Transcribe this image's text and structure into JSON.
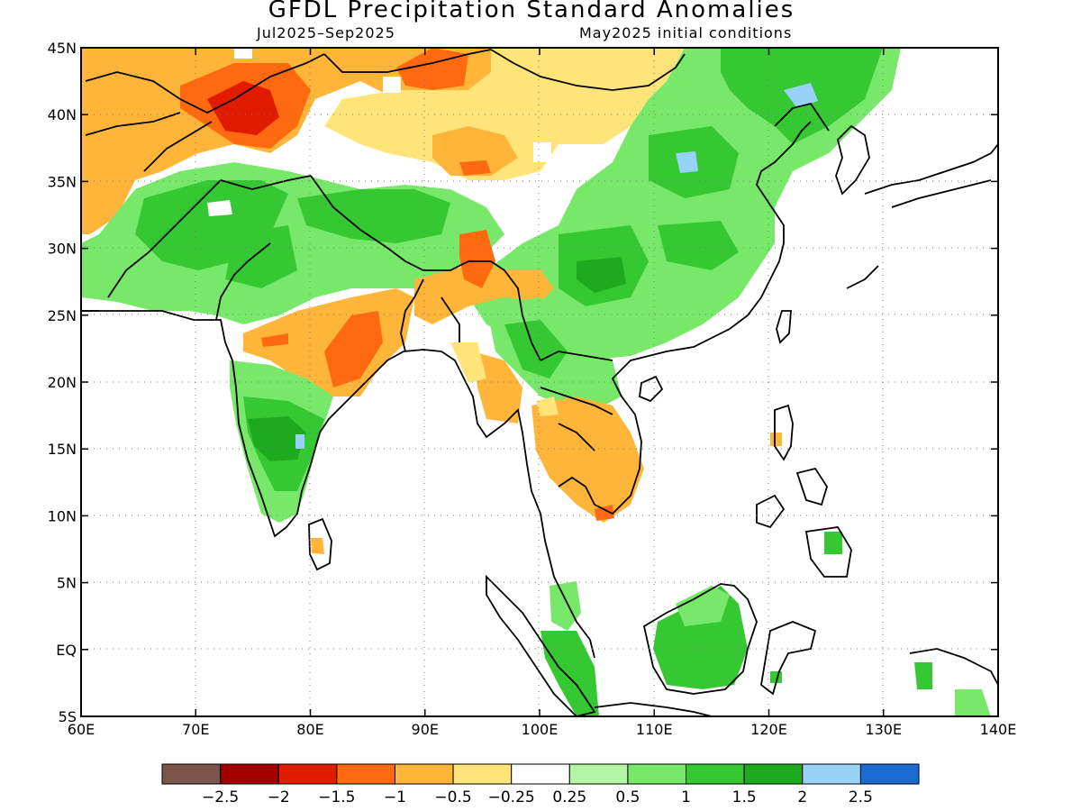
{
  "title": "GFDL Precipitation Standard Anomalies",
  "subtitle_left": "Jul2025–Sep2025",
  "subtitle_right": "May2025 initial conditions",
  "map": {
    "lon_range": [
      60,
      140
    ],
    "lat_range": [
      -5,
      45
    ],
    "x_ticks": [
      "60E",
      "70E",
      "80E",
      "90E",
      "100E",
      "110E",
      "120E",
      "130E",
      "140E"
    ],
    "y_ticks": [
      "45N",
      "40N",
      "35N",
      "30N",
      "25N",
      "20N",
      "15N",
      "10N",
      "5N",
      "EQ",
      "5S"
    ],
    "grid": "dotted"
  },
  "legend": {
    "colors": [
      "#7a5448",
      "#a00000",
      "#e01b00",
      "#ff6a10",
      "#ffb53a",
      "#ffe47a",
      "#ffffff",
      "#b4f5a5",
      "#78e86a",
      "#36c832",
      "#1eaa1e",
      "#96d2fa",
      "#1b6bd2"
    ],
    "labels": [
      "−2.5",
      "−2",
      "−1.5",
      "−1",
      "−0.5",
      "−0.25",
      "0.25",
      "0.5",
      "1",
      "1.5",
      "2",
      "2.5"
    ]
  },
  "chart_data": {
    "type": "heatmap",
    "title": "GFDL Precipitation Standard Anomalies",
    "variable": "precipitation standard anomaly",
    "period": "Jul2025–Sep2025",
    "initial_conditions": "May2025",
    "xlim": [
      60,
      140
    ],
    "ylim": [
      -5,
      45
    ],
    "regions": [
      {
        "lon": 66,
        "lat": 41,
        "value": -0.5
      },
      {
        "lon": 77,
        "lat": 42,
        "value": -1.0
      },
      {
        "lon": 78,
        "lat": 40.5,
        "value": -1.5
      },
      {
        "lon": 88,
        "lat": 44,
        "value": -0.5
      },
      {
        "lon": 91,
        "lat": 44,
        "value": -1.0
      },
      {
        "lon": 63,
        "lat": 34,
        "value": -0.5
      },
      {
        "lon": 95,
        "lat": 37,
        "value": -0.5
      },
      {
        "lon": 102,
        "lat": 44,
        "value": -0.25
      },
      {
        "lon": 108,
        "lat": 44,
        "value": -0.25
      },
      {
        "lon": 120,
        "lat": 44,
        "value": 1.0
      },
      {
        "lon": 124,
        "lat": 42,
        "value": 2.0
      },
      {
        "lon": 114,
        "lat": 36,
        "value": 1.5
      },
      {
        "lon": 113,
        "lat": 36,
        "value": 2.0
      },
      {
        "lon": 88,
        "lat": 33,
        "value": 1.0
      },
      {
        "lon": 90,
        "lat": 33,
        "value": 1.5
      },
      {
        "lon": 74,
        "lat": 31,
        "value": 1.0
      },
      {
        "lon": 66,
        "lat": 28,
        "value": 1.0
      },
      {
        "lon": 107,
        "lat": 28,
        "value": 1.5
      },
      {
        "lon": 115,
        "lat": 28,
        "value": 1.0
      },
      {
        "lon": 84,
        "lat": 22,
        "value": -1.0
      },
      {
        "lon": 85,
        "lat": 21,
        "value": -1.5
      },
      {
        "lon": 95,
        "lat": 28,
        "value": -1.0
      },
      {
        "lon": 97,
        "lat": 25,
        "value": -0.5
      },
      {
        "lon": 78,
        "lat": 17,
        "value": 1.5
      },
      {
        "lon": 79.5,
        "lat": 15.5,
        "value": 2.0
      },
      {
        "lon": 102,
        "lat": 16,
        "value": -0.5
      },
      {
        "lon": 105,
        "lat": 13,
        "value": -0.5
      },
      {
        "lon": 96,
        "lat": 18,
        "value": -0.25
      },
      {
        "lon": 100,
        "lat": 22,
        "value": 1.0
      },
      {
        "lon": 113,
        "lat": 1,
        "value": 1.5
      },
      {
        "lon": 103,
        "lat": 3,
        "value": 1.0
      },
      {
        "lon": 81,
        "lat": 7.5,
        "value": -0.5
      },
      {
        "lon": 123,
        "lat": 8,
        "value": 1.0
      }
    ]
  }
}
